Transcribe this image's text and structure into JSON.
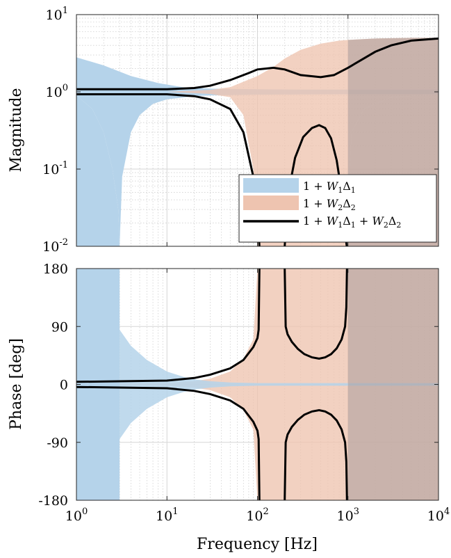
{
  "chart_data": [
    {
      "type": "area",
      "panel": "magnitude",
      "ylabel": "Magnitude",
      "xlabel": "",
      "xscale": "log",
      "yscale": "log",
      "xlim": [
        1,
        10000
      ],
      "ylim": [
        0.01,
        10
      ],
      "xticks": [
        1,
        10,
        100,
        1000,
        10000
      ],
      "yticks": [
        {
          "base": "10",
          "exp": "-2"
        },
        {
          "base": "10",
          "exp": "-1"
        },
        {
          "base": "10",
          "exp": "0"
        },
        {
          "base": "10",
          "exp": "1"
        }
      ],
      "grid": true,
      "legend_position": "bottom-right",
      "series": [
        {
          "name": "1 + W₁Δ₁",
          "kind": "band",
          "color": "#b5d3ea",
          "upper": {
            "x": [
              1,
              2,
              4,
              8,
              15,
              30,
              100,
              300,
              1000,
              10000
            ],
            "y": [
              2.8,
              2.2,
              1.6,
              1.3,
              1.15,
              1.1,
              1.08,
              1.07,
              1.07,
              1.07
            ]
          },
          "lower": {
            "x": [
              1,
              1.5,
              2,
              2.5,
              2.9,
              3.0,
              3.2,
              4,
              5,
              7,
              10,
              20,
              30,
              100,
              1000,
              10000
            ],
            "y": [
              0.9,
              0.6,
              0.3,
              0.1,
              0.03,
              0.01,
              0.08,
              0.3,
              0.5,
              0.7,
              0.8,
              0.88,
              0.9,
              0.92,
              0.93,
              0.93
            ]
          }
        },
        {
          "name": "1 + W₂Δ₂",
          "kind": "band",
          "color": "#eec4b0",
          "upper": {
            "x": [
              1,
              10,
              30,
              50,
              100,
              150,
              200,
              300,
              500,
              800,
              1000,
              2000,
              5000,
              10000
            ],
            "y": [
              1.0,
              1.0,
              1.06,
              1.15,
              1.6,
              2.1,
              2.7,
              3.5,
              4.2,
              4.6,
              4.7,
              4.9,
              5.0,
              5.0
            ]
          },
          "lower": {
            "x": [
              1,
              10,
              30,
              50,
              70,
              90,
              100,
              500,
              980,
              1000,
              1100,
              1500,
              3000,
              10000
            ],
            "y": [
              1.0,
              1.0,
              0.94,
              0.85,
              0.5,
              0.1,
              0.01,
              0.01,
              0.01,
              0.05,
              0.3,
              0.6,
              0.85,
              0.93
            ]
          }
        },
        {
          "name": "1 + W₁Δ₁ + W₂Δ₂",
          "kind": "bounds",
          "color": "#000000",
          "upper": {
            "x": [
              1,
              10,
              20,
              30,
              50,
              80,
              100,
              150,
              200,
              300,
              500,
              700,
              1000,
              2000,
              3000,
              5000,
              10000
            ],
            "y": [
              1.08,
              1.08,
              1.12,
              1.2,
              1.42,
              1.75,
              1.95,
              2.05,
              1.95,
              1.65,
              1.55,
              1.65,
              2.05,
              3.3,
              4.0,
              4.6,
              4.9
            ]
          },
          "lower": {
            "x": [
              1,
              10,
              20,
              30,
              50,
              70,
              90,
              100,
              105
            ],
            "y": [
              0.93,
              0.93,
              0.88,
              0.8,
              0.6,
              0.3,
              0.08,
              0.03,
              0.01
            ]
          },
          "island": {
            "x": [
              200,
              220,
              260,
              320,
              400,
              480,
              560,
              650,
              750,
              850,
              930,
              970
            ],
            "y": [
              0.01,
              0.05,
              0.14,
              0.26,
              0.34,
              0.37,
              0.34,
              0.25,
              0.13,
              0.05,
              0.015,
              0.01
            ]
          }
        }
      ]
    },
    {
      "type": "area",
      "panel": "phase",
      "ylabel": "Phase [deg]",
      "xlabel": "Frequency [Hz]",
      "xscale": "log",
      "yscale": "linear",
      "xlim": [
        1,
        10000
      ],
      "ylim": [
        -180,
        180
      ],
      "xticks": [
        1,
        10,
        100,
        1000,
        10000
      ],
      "yticks": [
        "-180",
        "-90",
        "0",
        "90",
        "180"
      ],
      "grid": true,
      "series": [
        {
          "name": "1 + W₁Δ₁",
          "kind": "band",
          "color": "#b5d3ea",
          "region": [
            {
              "x0": 1,
              "x1": 3,
              "y0": -180,
              "y1": 180
            },
            {
              "shape": "upper",
              "x": [
                3,
                4,
                6,
                10,
                15,
                20,
                30,
                50,
                100,
                1000,
                10000
              ],
              "y": [
                85,
                60,
                38,
                20,
                12,
                8,
                5,
                3,
                2,
                2,
                2
              ]
            },
            {
              "shape": "lower",
              "x": [
                3,
                4,
                6,
                10,
                15,
                20,
                30,
                50,
                100,
                1000,
                10000
              ],
              "y": [
                -85,
                -60,
                -38,
                -20,
                -12,
                -8,
                -5,
                -3,
                -2,
                -2,
                -2
              ]
            }
          ]
        },
        {
          "name": "1 + W₂Δ₂",
          "kind": "band",
          "color": "#eec4b0",
          "region": [
            {
              "shape": "upper",
              "x": [
                1,
                10,
                20,
                30,
                50,
                70,
                90,
                100,
                1000,
                10000
              ],
              "y": [
                0,
                2,
                5,
                9,
                20,
                40,
                70,
                180,
                180,
                180
              ]
            },
            {
              "shape": "lower",
              "x": [
                1,
                10,
                20,
                30,
                50,
                70,
                90,
                100,
                1000,
                10000
              ],
              "y": [
                0,
                -2,
                -5,
                -9,
                -20,
                -40,
                -70,
                -180,
                -180,
                -180
              ]
            }
          ]
        },
        {
          "name": "1 + W₁Δ₁ + W₂Δ₂",
          "kind": "bounds",
          "color": "#000000",
          "upper": {
            "x": [
              1,
              10,
              20,
              30,
              50,
              70,
              90,
              100,
              103,
              105
            ],
            "y": [
              4,
              6,
              10,
              15,
              25,
              38,
              58,
              72,
              85,
              180
            ]
          },
          "lower": {
            "x": [
              1,
              10,
              20,
              30,
              50,
              70,
              90,
              100,
              103,
              105
            ],
            "y": [
              -4,
              -6,
              -10,
              -15,
              -25,
              -38,
              -58,
              -72,
              -85,
              -180
            ]
          },
          "island_upper": {
            "x": [
              200,
              205,
              215,
              240,
              280,
              330,
              400,
              480,
              560,
              650,
              750,
              850,
              930,
              960,
              975
            ],
            "y": [
              180,
              90,
              78,
              66,
              55,
              47,
              42,
              40,
              42,
              47,
              56,
              70,
              90,
              120,
              180
            ]
          },
          "island_lower": {
            "x": [
              200,
              205,
              215,
              240,
              280,
              330,
              400,
              480,
              560,
              650,
              750,
              850,
              930,
              960,
              975
            ],
            "y": [
              -180,
              -90,
              -78,
              -66,
              -55,
              -47,
              -42,
              -40,
              -42,
              -47,
              -56,
              -70,
              -90,
              -120,
              -180
            ]
          }
        }
      ]
    }
  ],
  "legend": {
    "items": [
      {
        "kind": "swatch",
        "color": "#b5d3ea",
        "base": "1 + ",
        "t1": "W",
        "s1": "1",
        "t2": "Δ",
        "s2": "1",
        "t3": "",
        "s3": "",
        "t4": "",
        "s4": ""
      },
      {
        "kind": "swatch",
        "color": "#eec4b0",
        "base": "1 + ",
        "t1": "W",
        "s1": "2",
        "t2": "Δ",
        "s2": "2",
        "t3": "",
        "s3": "",
        "t4": "",
        "s4": ""
      },
      {
        "kind": "line",
        "color": "#000000",
        "base": "1 + ",
        "t1": "W",
        "s1": "1",
        "t2": "Δ",
        "s2": "1",
        "t3": " + W",
        "s3": "2",
        "t4": "Δ",
        "s4": "2"
      }
    ]
  }
}
